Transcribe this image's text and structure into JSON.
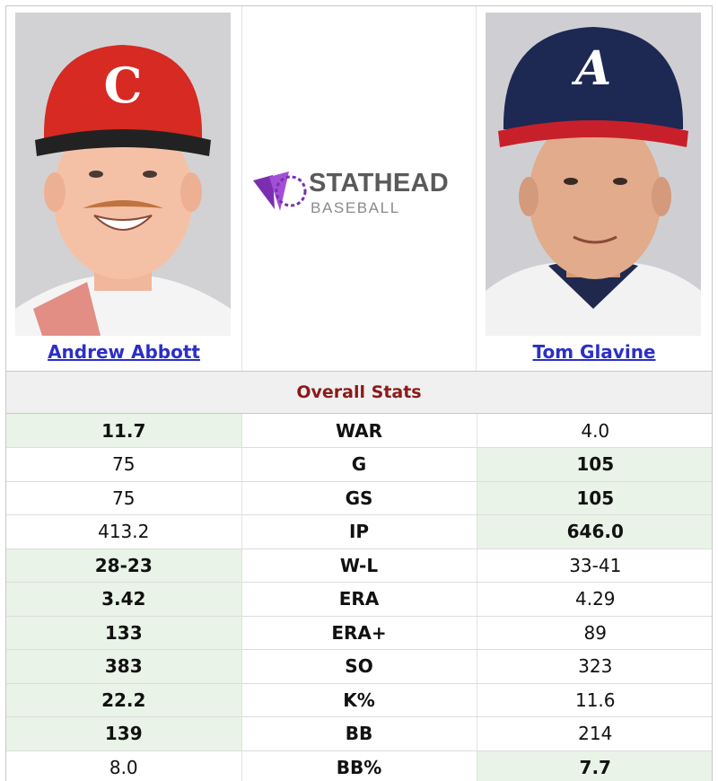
{
  "players": {
    "left": {
      "name": "Andrew Abbott"
    },
    "right": {
      "name": "Tom Glavine"
    }
  },
  "logo": {
    "line1": "STATHEAD",
    "line2": "BASEBALL",
    "accent": "#7b2fb0"
  },
  "section": {
    "title": "Overall Stats"
  },
  "colors": {
    "highlight": "#e9f3e7",
    "title": "#8b1a1a",
    "link": "#2b2fc8"
  },
  "stats": [
    {
      "label": "WAR",
      "left": "11.7",
      "right": "4.0",
      "leader": "left"
    },
    {
      "label": "G",
      "left": "75",
      "right": "105",
      "leader": "right"
    },
    {
      "label": "GS",
      "left": "75",
      "right": "105",
      "leader": "right"
    },
    {
      "label": "IP",
      "left": "413.2",
      "right": "646.0",
      "leader": "right"
    },
    {
      "label": "W-L",
      "left": "28-23",
      "right": "33-41",
      "leader": "left"
    },
    {
      "label": "ERA",
      "left": "3.42",
      "right": "4.29",
      "leader": "left"
    },
    {
      "label": "ERA+",
      "left": "133",
      "right": "89",
      "leader": "left"
    },
    {
      "label": "SO",
      "left": "383",
      "right": "323",
      "leader": "left"
    },
    {
      "label": "K%",
      "left": "22.2",
      "right": "11.6",
      "leader": "left"
    },
    {
      "label": "BB",
      "left": "139",
      "right": "214",
      "leader": "left"
    },
    {
      "label": "BB%",
      "left": "8.0",
      "right": "7.7",
      "leader": "right"
    }
  ]
}
